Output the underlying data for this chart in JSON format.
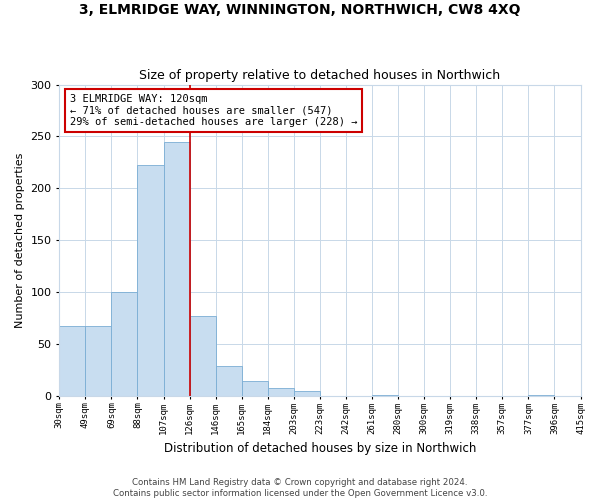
{
  "title_line1": "3, ELMRIDGE WAY, WINNINGTON, NORTHWICH, CW8 4XQ",
  "title_line2": "Size of property relative to detached houses in Northwich",
  "xlabel": "Distribution of detached houses by size in Northwich",
  "ylabel": "Number of detached properties",
  "bar_labels": [
    "30sqm",
    "49sqm",
    "69sqm",
    "88sqm",
    "107sqm",
    "126sqm",
    "146sqm",
    "165sqm",
    "184sqm",
    "203sqm",
    "223sqm",
    "242sqm",
    "261sqm",
    "280sqm",
    "300sqm",
    "319sqm",
    "338sqm",
    "357sqm",
    "377sqm",
    "396sqm",
    "415sqm"
  ],
  "bar_values": [
    67,
    67,
    100,
    222,
    245,
    77,
    29,
    14,
    8,
    5,
    0,
    0,
    1,
    0,
    0,
    0,
    0,
    0,
    1,
    0
  ],
  "bar_color": "#c8ddf0",
  "bar_edge_color": "#7aadd4",
  "vline_color": "#cc0000",
  "annotation_text": "3 ELMRIDGE WAY: 120sqm\n← 71% of detached houses are smaller (547)\n29% of semi-detached houses are larger (228) →",
  "annotation_box_color": "#ffffff",
  "annotation_box_edge": "#cc0000",
  "ylim": [
    0,
    300
  ],
  "yticks": [
    0,
    50,
    100,
    150,
    200,
    250,
    300
  ],
  "footer_text": "Contains HM Land Registry data © Crown copyright and database right 2024.\nContains public sector information licensed under the Open Government Licence v3.0.",
  "background_color": "#ffffff",
  "grid_color": "#c8d8e8"
}
